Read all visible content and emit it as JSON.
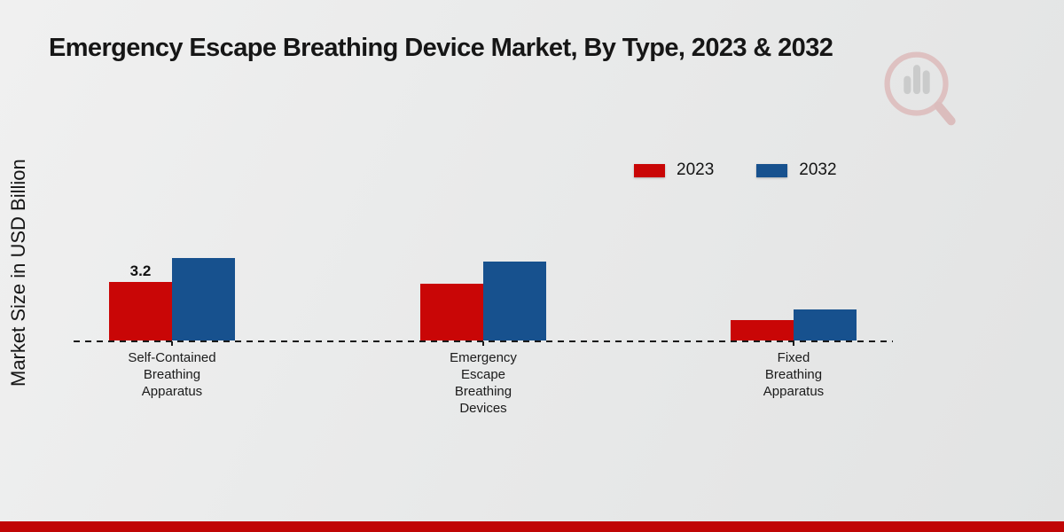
{
  "title": "Emergency Escape Breathing Device Market, By Type, 2023 & 2032",
  "y_axis_label": "Market Size in USD Billion",
  "legend": {
    "items": [
      {
        "label": "2023",
        "color": "#c90606"
      },
      {
        "label": "2032",
        "color": "#17518e"
      }
    ]
  },
  "chart_data": {
    "type": "bar",
    "title": "Emergency Escape Breathing Device Market, By Type, 2023 & 2032",
    "xlabel": "",
    "ylabel": "Market Size in USD Billion",
    "categories": [
      "Self-Contained\nBreathing\nApparatus",
      "Emergency\nEscape\nBreathing\nDevices",
      "Fixed\nBreathing\nApparatus"
    ],
    "series": [
      {
        "name": "2023",
        "color": "#c90606",
        "values": [
          3.2,
          3.1,
          1.1
        ],
        "value_labels": [
          "3.2",
          "",
          ""
        ]
      },
      {
        "name": "2032",
        "color": "#17518e",
        "values": [
          4.5,
          4.3,
          1.7
        ],
        "value_labels": [
          "",
          "",
          ""
        ]
      }
    ],
    "ylim": [
      0,
      5
    ],
    "grid": false,
    "legend_position": "top-right",
    "baseline_style": "dashed",
    "y_axis_ticks_shown": false
  },
  "watermark": {
    "name": "market-research-magnifier-logo"
  },
  "footer": {
    "bar_color": "#c00505"
  }
}
